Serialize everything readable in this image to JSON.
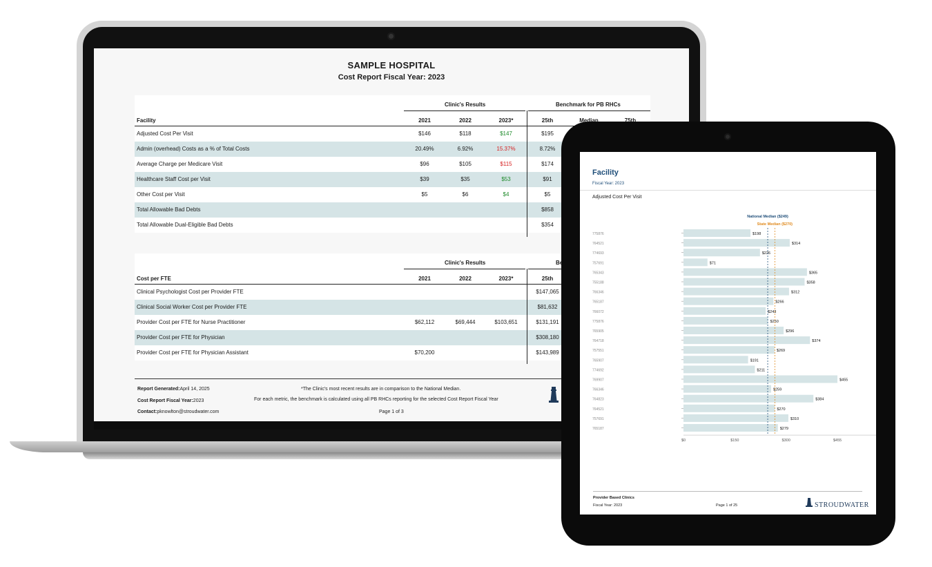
{
  "laptop": {
    "report": {
      "title": "SAMPLE HOSPITAL",
      "subtitle": "Cost Report Fiscal Year: 2023",
      "table1": {
        "group_clinic": "Clinic's Results",
        "group_benchmark": "Benchmark for PB RHCs",
        "headers": [
          "Facility",
          "2021",
          "2022",
          "2023*",
          "25th",
          "Median",
          "75th"
        ],
        "rows": [
          {
            "label": "Adjusted Cost Per Visit",
            "v2021": "$146",
            "v2022": "$118",
            "v2023": "$147",
            "p25": "$195",
            "v2023_color": "green"
          },
          {
            "label": "Admin (overhead) Costs as a % of Total Costs",
            "v2021": "20.49%",
            "v2022": "6.92%",
            "v2023": "15.37%",
            "p25": "8.72%",
            "v2023_color": "red"
          },
          {
            "label": "Average Charge per Medicare Visit",
            "v2021": "$96",
            "v2022": "$105",
            "v2023": "$115",
            "p25": "$174",
            "v2023_color": "red"
          },
          {
            "label": "Healthcare Staff Cost per Visit",
            "v2021": "$39",
            "v2022": "$35",
            "v2023": "$53",
            "p25": "$91",
            "v2023_color": "green"
          },
          {
            "label": "Other Cost per Visit",
            "v2021": "$5",
            "v2022": "$6",
            "v2023": "$4",
            "p25": "$5",
            "v2023_color": "green"
          },
          {
            "label": "Total Allowable Bad Debts",
            "v2021": "",
            "v2022": "",
            "v2023": "",
            "p25": "$858",
            "v2023_color": ""
          },
          {
            "label": "Total Allowable Dual-Eligible Bad Debts",
            "v2021": "",
            "v2022": "",
            "v2023": "",
            "p25": "$354",
            "v2023_color": ""
          }
        ]
      },
      "table2": {
        "group_clinic": "Clinic's Results",
        "group_benchmark": "Be",
        "headers": [
          "Cost per FTE",
          "2021",
          "2022",
          "2023*",
          "25th"
        ],
        "rows": [
          {
            "label": "Clinical Psychologist Cost per Provider FTE",
            "v2021": "",
            "v2022": "",
            "v2023": "",
            "p25": "$147,065"
          },
          {
            "label": "Clinical Social Worker Cost per Provider FTE",
            "v2021": "",
            "v2022": "",
            "v2023": "",
            "p25": "$81,632"
          },
          {
            "label": "Provider Cost per FTE for Nurse Practitioner",
            "v2021": "$62,112",
            "v2022": "$69,444",
            "v2023": "$103,651",
            "p25": "$131,191"
          },
          {
            "label": "Provider Cost per FTE for Physician",
            "v2021": "",
            "v2022": "",
            "v2023": "",
            "p25": "$308,180"
          },
          {
            "label": "Provider Cost per FTE for Physician Assistant",
            "v2021": "$70,200",
            "v2022": "",
            "v2023": "",
            "p25": "$143,989"
          }
        ]
      },
      "footer": {
        "generated_label": "Report Generated:",
        "generated_value": "April 14, 2025",
        "fiscal_label": "Cost Report Fiscal Year:",
        "fiscal_value": "2023",
        "contact_label": "Contact:",
        "contact_value": "pknowlton@stroudwater.com",
        "note1": "*The Clinic's most recent results are in comparison to the National Median.",
        "note2": "For each metric, the benchmark is calculated using all PB RHCs reporting for the selected Cost Report Fiscal Year",
        "page": "Page 1 of 3"
      }
    }
  },
  "tablet": {
    "title": "Facility",
    "subtitle": "Fiscal Year: 2023",
    "metric": "Adjusted Cost Per Visit",
    "footer": {
      "left1": "Provider Based Clinics",
      "left2": "Fiscal Year: 2023",
      "page": "Page 1 of 25",
      "logo": "STROUDWATER"
    }
  },
  "chart_data": {
    "type": "bar",
    "orientation": "horizontal",
    "categories": [
      "775876",
      "764521",
      "774693",
      "757691",
      "765343",
      "755188",
      "766346",
      "765187",
      "766072",
      "775876",
      "765905",
      "764718",
      "757551",
      "765907",
      "774692",
      "769907",
      "766346",
      "764823",
      "764521",
      "757691",
      "765187"
    ],
    "values": [
      198,
      314,
      226,
      71,
      365,
      358,
      312,
      266,
      243,
      250,
      296,
      374,
      269,
      191,
      211,
      455,
      259,
      384,
      270,
      310,
      279
    ],
    "labels": [
      "$198",
      "$314",
      "$226",
      "$71",
      "$365",
      "$358",
      "$312",
      "$266",
      "$243",
      "$250",
      "$296",
      "$374",
      "$269",
      "$191",
      "$211",
      "$455",
      "$259",
      "$384",
      "$270",
      "$310",
      "$279"
    ],
    "reference_lines": [
      {
        "name": "National Median ($249)",
        "value": 249,
        "color": "#1f4e79"
      },
      {
        "name": "State Median ($270)",
        "value": 270,
        "color": "#e08a1e"
      }
    ],
    "x_ticks": [
      "$0",
      "$150",
      "$300",
      "$455"
    ],
    "bar_color": "#d5e4e6"
  }
}
